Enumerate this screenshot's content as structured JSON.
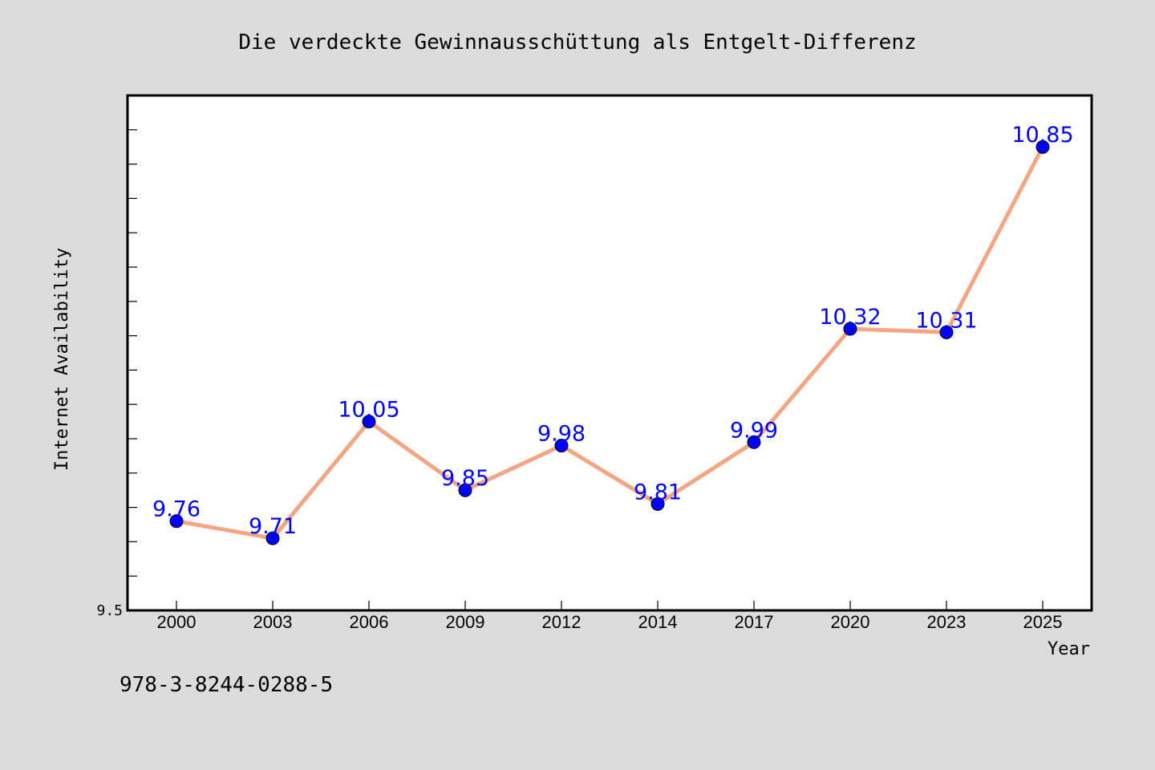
{
  "chart_data": {
    "type": "line",
    "title": "Die verdeckte Gewinnausschüttung als Entgelt-Differenz",
    "xlabel": "Year",
    "ylabel": "Internet Availability",
    "categories": [
      "2000",
      "2003",
      "2006",
      "2009",
      "2012",
      "2014",
      "2017",
      "2020",
      "2023",
      "2025"
    ],
    "series": [
      {
        "values": [
          9.76,
          9.71,
          10.05,
          9.85,
          9.98,
          9.81,
          9.99,
          10.32,
          10.31,
          10.85
        ]
      }
    ],
    "data_labels": [
      "9.76",
      "9.71",
      "10.05",
      "9.85",
      "9.98",
      "9.81",
      "9.99",
      "10.32",
      "10.31",
      "10.85"
    ],
    "ylim": [
      9.5,
      11.0
    ],
    "y_tick_labels": [
      "9.5"
    ],
    "y_minor_tick_step": 0.1,
    "grid": false,
    "legend": "none",
    "annotation": "978-3-8244-0288-5",
    "colors": {
      "background": "#dcdcdc",
      "plot_background": "#ffffff",
      "line": "#f4a582",
      "marker": "#0000ff",
      "data_label": "#0000ff",
      "text": "#000000"
    }
  }
}
